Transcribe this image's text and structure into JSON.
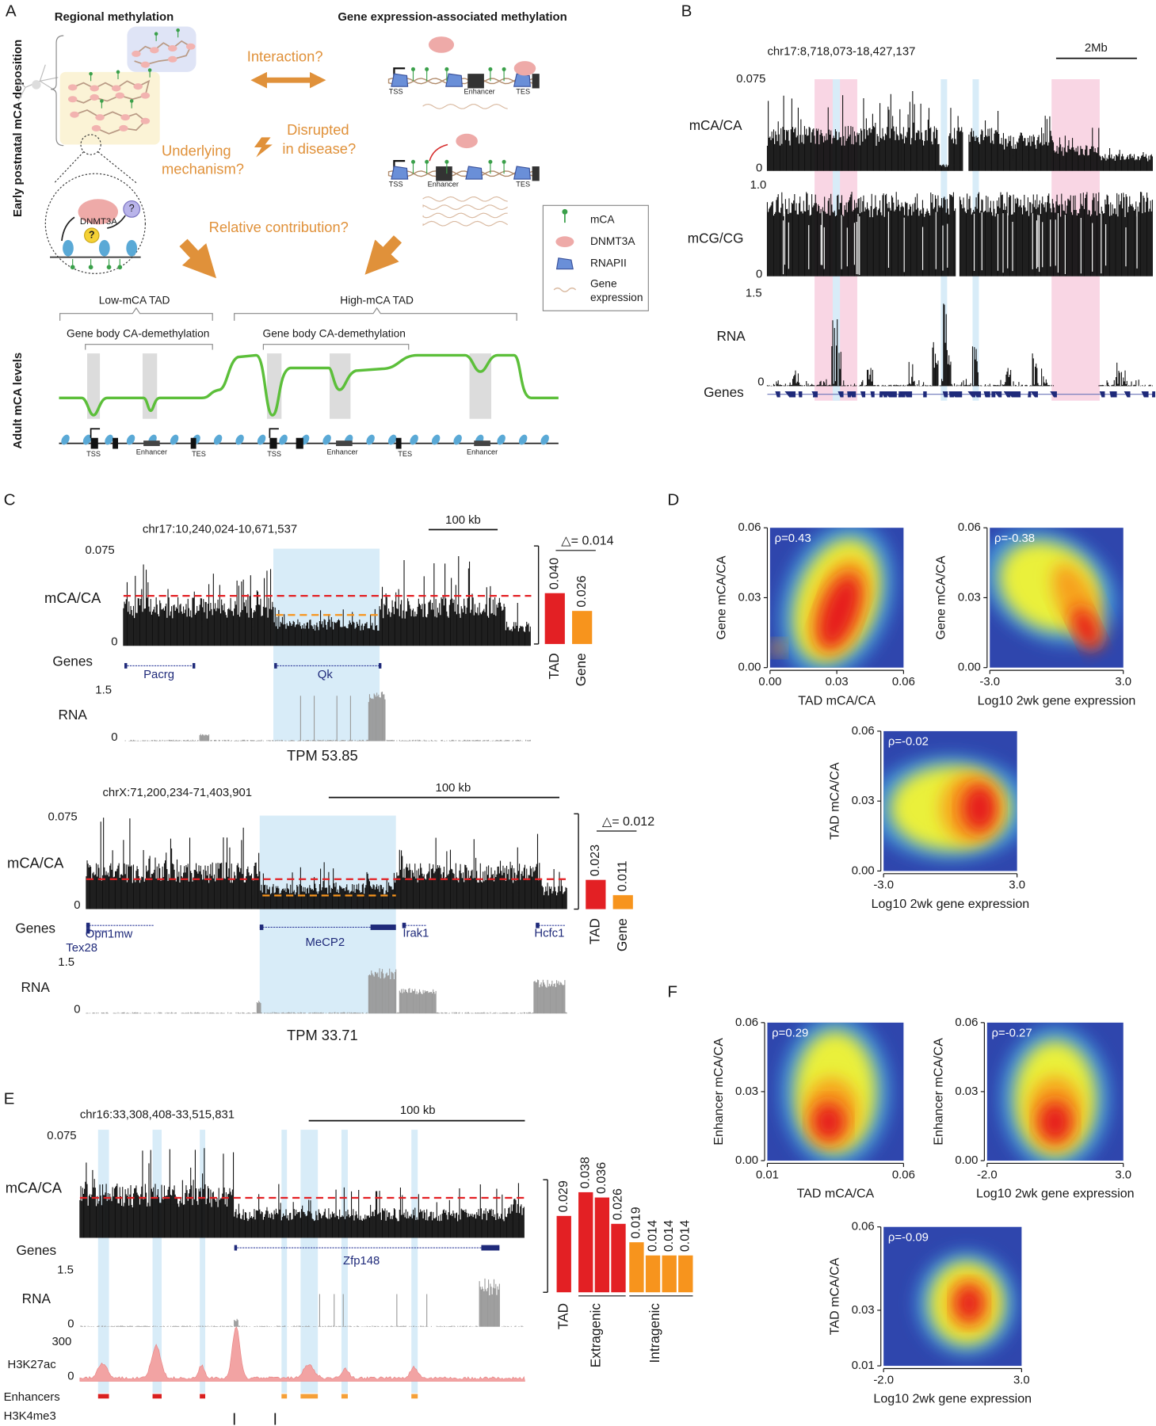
{
  "figure": {
    "panel_labels": [
      "A",
      "B",
      "C",
      "D",
      "E",
      "F"
    ],
    "A": {
      "headings": [
        "Regional methylation",
        "Gene expression-associated methylation"
      ],
      "side_labels": [
        "Early postnatal mCA deposition",
        "Adult mCA levels"
      ],
      "low_tad": [
        "Low-mCA",
        "TAD"
      ],
      "high_tad": [
        "High-mCA",
        "TAD"
      ],
      "dnmt3a": "DNMT3A",
      "marks": [
        "?",
        "?"
      ],
      "interaction": "Interaction?",
      "mechanism": [
        "Underlying",
        "mechanism?"
      ],
      "disease": [
        "Disrupted",
        "in disease?"
      ],
      "contribution": "Relative contribution?",
      "gene1": [
        "TSS",
        "Enhancer",
        "TES"
      ],
      "gene2": [
        "TSS",
        "Enhancer",
        "TES"
      ],
      "legend": [
        [
          "mCA"
        ],
        [
          "DNMT3A"
        ],
        [
          "RNAPII"
        ],
        [
          "Gene",
          "expression"
        ]
      ],
      "bottom_tads": [
        "Low-mCA TAD",
        "High-mCA TAD"
      ],
      "demethylation": [
        "Gene body CA-demethylation",
        "Gene body CA-demethylation"
      ],
      "bottom_labels": [
        "TSS",
        "Enhancer",
        "TES",
        "TSS",
        "Enhancer",
        "TES",
        "Enhancer"
      ]
    },
    "B": {
      "region": "chr17:8,718,073-18,427,137",
      "scale": "2Mb",
      "tracks": [
        {
          "name": "mCA/CA",
          "top": "0.075",
          "bottom": "0"
        },
        {
          "name": "mCG/CG",
          "top": "1.0",
          "bottom": "0"
        },
        {
          "name": "RNA",
          "top": "1.5",
          "bottom": "0"
        }
      ],
      "genes": "Genes"
    },
    "C": [
      {
        "region": "chr17:10,240,024-10,671,537",
        "scale": "100 kb",
        "mca": {
          "name": "mCA/CA",
          "top": "0.075",
          "bottom": "0"
        },
        "genes_label": "Genes",
        "genes": [
          "Pacrg",
          "Qk"
        ],
        "rna": {
          "name": "RNA",
          "top": "1.5",
          "bottom": "0"
        },
        "tpm": "TPM 53.85"
      },
      {
        "region": "chrX:71,200,234-71,403,901",
        "scale": "100 kb",
        "mca": {
          "name": "mCA/CA",
          "top": "0.075",
          "bottom": "0"
        },
        "genes_label": "Genes",
        "genes": [
          "Opn1mw",
          "Tex28",
          "MeCP2",
          "Irak1",
          "Hcfc1"
        ],
        "rna": {
          "name": "RNA",
          "top": "1.5",
          "bottom": "0"
        },
        "tpm": "TPM 33.71"
      }
    ],
    "E": {
      "region": "chr16:33,308,408-33,515,831",
      "scale": "100 kb",
      "mca": {
        "name": "mCA/CA",
        "top": "0.075"
      },
      "genes_label": "Genes",
      "gene": "Zfp148",
      "rna": {
        "name": "RNA",
        "top": "1.5",
        "bottom": "0"
      },
      "h3k27ac": {
        "name": "H3K27ac",
        "top": "300",
        "bottom": "0"
      },
      "enhancers": "Enhancers",
      "h3k4me3": "H3K4me3"
    }
  },
  "chart_data": [
    {
      "type": "bar",
      "categories": [
        "TAD",
        "Gene"
      ],
      "values": [
        0.04,
        0.026
      ],
      "value_labels": [
        "0.040",
        "0.026"
      ],
      "colors": [
        "#e32024",
        "#f7941d"
      ],
      "annotation": "△= 0.014"
    },
    {
      "type": "bar",
      "categories": [
        "TAD",
        "Gene"
      ],
      "values": [
        0.023,
        0.011
      ],
      "colors": [
        "#e32024",
        "#f7941d"
      ],
      "annotation": "△= 0.012"
    },
    {
      "type": "grouped-bar",
      "series": [
        {
          "name": "TAD",
          "color": "#e32024",
          "values": [
            0.029
          ]
        },
        {
          "name": "Extragenic",
          "color": "#e32024",
          "values": [
            0.038,
            0.036,
            0.026
          ]
        },
        {
          "name": "Intragenic",
          "color": "#f7941d",
          "values": [
            0.019,
            0.014,
            0.014,
            0.014
          ]
        }
      ]
    },
    {
      "type": "heatmap",
      "annotation": "ρ=0.43",
      "ylabel": "Gene mCA/CA",
      "xlabel": "TAD mCA/CA",
      "xlim": [
        0,
        0.06
      ],
      "ylim": [
        0,
        0.06
      ],
      "xticks": [
        {
          "value": 0,
          "label": "0.00"
        },
        0.03,
        0.06
      ],
      "yticks": [
        {
          "value": 0,
          "label": "0.00"
        },
        0.03,
        0.06
      ]
    },
    {
      "type": "heatmap",
      "annotation": "ρ=-0.38",
      "ylabel": "Gene mCA/CA",
      "xlabel": "Log10 2wk gene expression",
      "xlim": [
        -3,
        3
      ],
      "ylim": [
        0,
        0.06
      ],
      "xticks": [
        {
          "value": -3,
          "label": "-3.0"
        },
        {
          "value": 3,
          "label": "3.0"
        }
      ],
      "yticks": [
        {
          "value": 0,
          "label": "0.00"
        },
        0.03,
        0.06
      ]
    },
    {
      "type": "heatmap",
      "annotation": "ρ=-0.02",
      "ylabel": "TAD mCA/CA",
      "xlabel": "Log10 2wk gene expression",
      "xlim": [
        -3,
        3
      ],
      "ylim": [
        0,
        0.06
      ],
      "xticks": [
        {
          "value": -3,
          "label": "-3.0"
        },
        {
          "value": 3,
          "label": "3.0"
        }
      ],
      "yticks": [
        {
          "value": 0,
          "label": "0.00"
        },
        0.03,
        0.06
      ]
    },
    {
      "type": "heatmap",
      "annotation": "ρ=0.29",
      "ylabel": "Enhancer mCA/CA",
      "xlabel": "TAD mCA/CA",
      "xlim": [
        0.01,
        0.06
      ],
      "ylim": [
        0,
        0.06
      ],
      "xticks": [
        0.01,
        0.06
      ],
      "yticks": [
        {
          "value": 0,
          "label": "0.00"
        },
        0.03,
        0.06
      ]
    },
    {
      "type": "heatmap",
      "annotation": "ρ=-0.27",
      "ylabel": "Enhancer mCA/CA",
      "xlabel": "Log10 2wk gene expression",
      "xlim": [
        -2,
        3
      ],
      "ylim": [
        0,
        0.06
      ],
      "xticks": [
        {
          "value": -2,
          "label": "-2.0"
        },
        {
          "value": 3,
          "label": "3.0"
        }
      ],
      "yticks": [
        {
          "value": 0,
          "label": "0.00"
        },
        0.03,
        0.06
      ]
    },
    {
      "type": "heatmap",
      "annotation": "ρ=-0.09",
      "ylabel": "TAD mCA/CA",
      "xlabel": "Log10 2wk gene expression",
      "xlim": [
        -2,
        3
      ],
      "ylim": [
        0.01,
        0.06
      ],
      "xticks": [
        {
          "value": -2,
          "label": "-2.0"
        },
        {
          "value": 3,
          "label": "3.0"
        }
      ],
      "yticks": [
        0.01,
        0.03,
        0.06
      ]
    }
  ]
}
